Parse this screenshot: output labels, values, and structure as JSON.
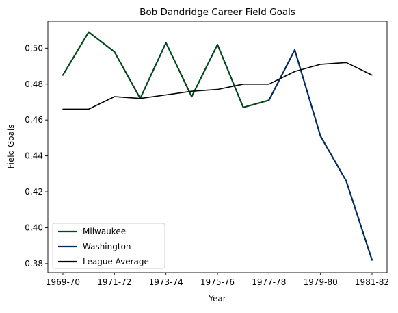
{
  "chart_data": {
    "type": "line",
    "title": "Bob Dandridge Career Field Goals",
    "xlabel": "Year",
    "ylabel": "Field Goals",
    "x": [
      "1969-70",
      "1970-71",
      "1971-72",
      "1972-73",
      "1973-74",
      "1974-75",
      "1975-76",
      "1976-77",
      "1977-78",
      "1978-79",
      "1979-80",
      "1980-81",
      "1981-82"
    ],
    "xticks": [
      "1969-70",
      "1971-72",
      "1973-74",
      "1975-76",
      "1977-78",
      "1979-80",
      "1981-82"
    ],
    "ylim": [
      0.375,
      0.515
    ],
    "yticks": [
      "0.38",
      "0.40",
      "0.42",
      "0.44",
      "0.46",
      "0.48",
      "0.50"
    ],
    "grid": false,
    "legend_position": "lower-left",
    "series": [
      {
        "name": "Milwaukee",
        "color": "#00471b",
        "x": [
          "1969-70",
          "1970-71",
          "1971-72",
          "1972-73",
          "1973-74",
          "1974-75",
          "1975-76",
          "1976-77",
          "1977-78"
        ],
        "values": [
          0.485,
          0.509,
          0.498,
          0.472,
          0.503,
          0.473,
          0.502,
          0.467,
          0.471
        ]
      },
      {
        "name": "Washington",
        "color": "#002b5c",
        "x": [
          "1977-78",
          "1978-79",
          "1979-80",
          "1980-81",
          "1981-82"
        ],
        "values": [
          0.471,
          0.499,
          0.451,
          0.426,
          0.382
        ]
      },
      {
        "name": "League Average",
        "color": "#000000",
        "x": [
          "1969-70",
          "1970-71",
          "1971-72",
          "1972-73",
          "1973-74",
          "1974-75",
          "1975-76",
          "1976-77",
          "1977-78",
          "1978-79",
          "1979-80",
          "1980-81",
          "1981-82"
        ],
        "values": [
          0.466,
          0.466,
          0.473,
          0.472,
          0.474,
          0.476,
          0.477,
          0.48,
          0.48,
          0.487,
          0.491,
          0.492,
          0.485
        ]
      }
    ]
  }
}
